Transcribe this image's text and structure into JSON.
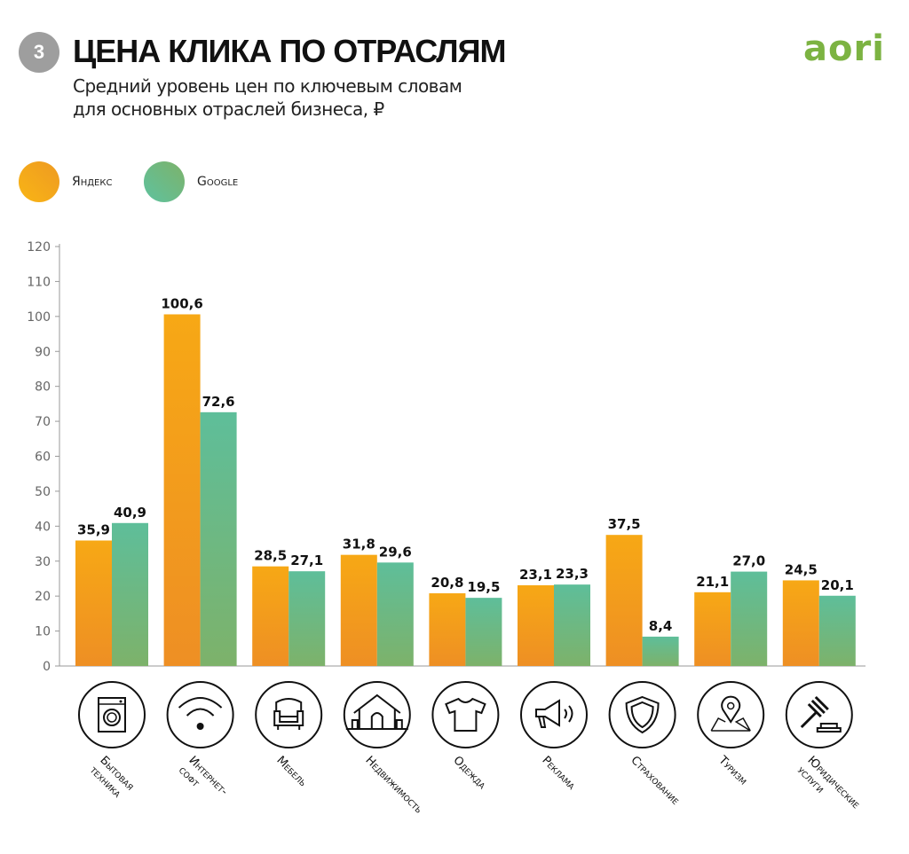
{
  "header": {
    "badge": "3",
    "title": "ЦЕНА КЛИКА ПО ОТРАСЛЯМ",
    "subtitle_line1": "Средний уровень цен по ключевым словам",
    "subtitle_line2": "для основных отраслей бизнеса, ₽",
    "logo": "aori"
  },
  "colors": {
    "yandex_top": "#F7A815",
    "yandex_bottom": "#EE8F24",
    "google_top": "#5EBE9A",
    "google_bottom": "#7DB26A",
    "logo": "#7CB342"
  },
  "chart_data": {
    "type": "bar",
    "title": "",
    "xlabel": "",
    "ylabel": "",
    "ylim": [
      0,
      120
    ],
    "yticks": [
      0,
      10,
      20,
      30,
      40,
      50,
      60,
      70,
      80,
      90,
      100,
      110,
      120
    ],
    "grid": false,
    "legend": "top-left",
    "categories": [
      "Бытовая\nтехника",
      "Интернет-\nсофт",
      "Мебель",
      "Недвижимость",
      "Одежда",
      "Реклама",
      "Страхование",
      "Туризм",
      "Юридические\nуслуги"
    ],
    "category_icons": [
      "washing-machine-icon",
      "wifi-icon",
      "armchair-icon",
      "house-icon",
      "tshirt-icon",
      "megaphone-icon",
      "shield-icon",
      "map-pin-icon",
      "gavel-icon"
    ],
    "series": [
      {
        "name": "Яндекс",
        "values": [
          35.9,
          100.6,
          28.5,
          31.8,
          20.8,
          23.1,
          37.5,
          21.1,
          24.5
        ],
        "labels": [
          "35,9",
          "100,6",
          "28,5",
          "31,8",
          "20,8",
          "23,1",
          "37,5",
          "21,1",
          "24,5"
        ]
      },
      {
        "name": "Google",
        "values": [
          40.9,
          72.6,
          27.1,
          29.6,
          19.5,
          23.3,
          8.4,
          27.0,
          20.1
        ],
        "labels": [
          "40,9",
          "72,6",
          "27,1",
          "29,6",
          "19,5",
          "23,3",
          "8,4",
          "27,0",
          "20,1"
        ]
      }
    ]
  }
}
